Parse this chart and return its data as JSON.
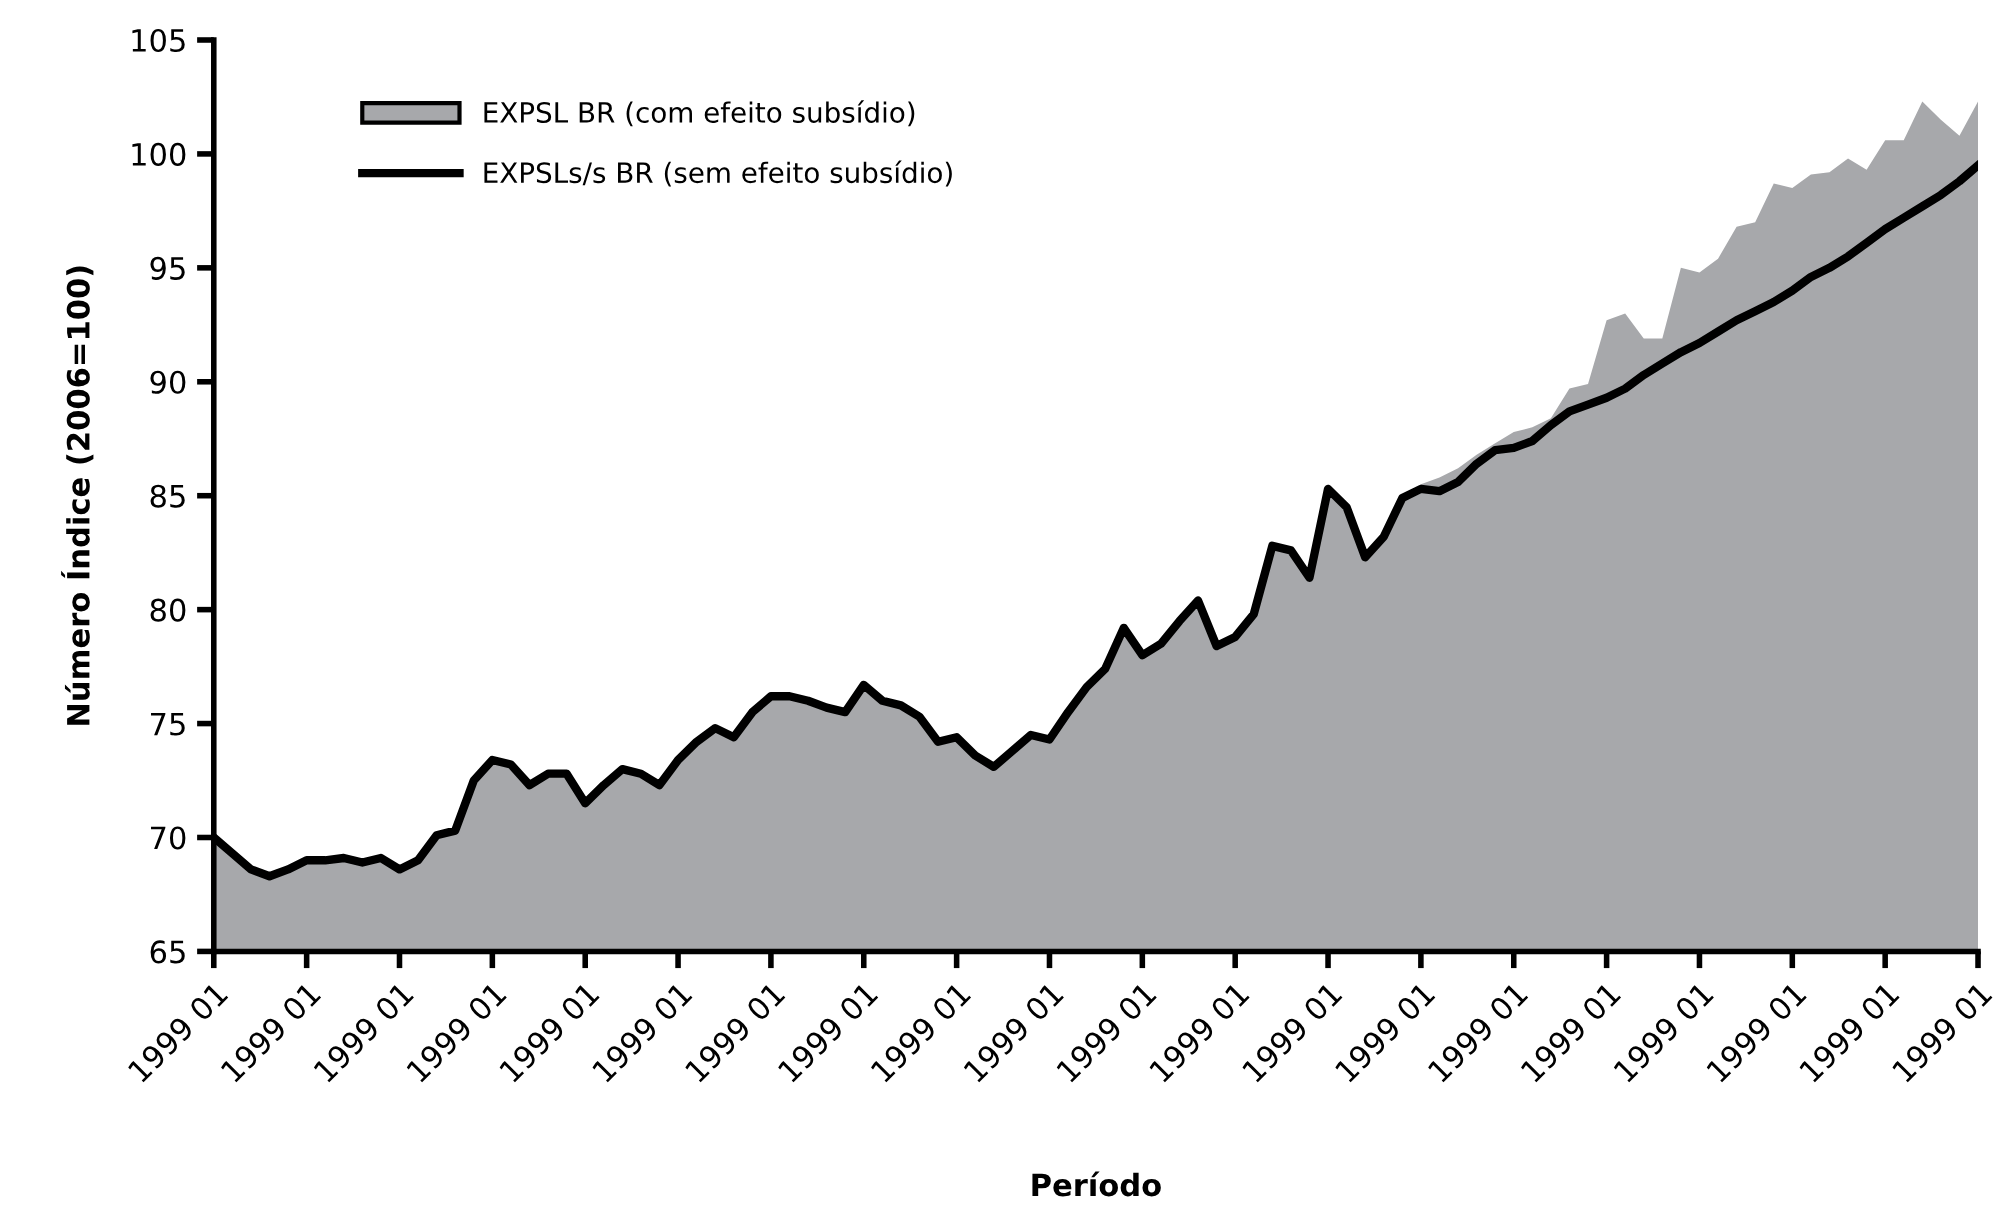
{
  "chart_data": {
    "type": "area",
    "xlabel": "Período",
    "ylabel": "Número Índice (2006=100)",
    "categories": [
      "1999 01",
      null,
      null,
      null,
      null,
      "1999 01",
      null,
      null,
      null,
      null,
      "1999 01",
      null,
      null,
      null,
      null,
      "1999 01",
      null,
      null,
      null,
      null,
      "1999 01",
      null,
      null,
      null,
      null,
      "1999 01",
      null,
      null,
      null,
      null,
      "1999 01",
      null,
      null,
      null,
      null,
      "1999 01",
      null,
      null,
      null,
      null,
      "1999 01",
      null,
      null,
      null,
      null,
      "1999 01",
      null,
      null,
      null,
      null,
      "1999 01",
      null,
      null,
      null,
      null,
      "1999 01",
      null,
      null,
      null,
      null,
      "1999 01",
      null,
      null,
      null,
      null,
      "1999 01",
      null,
      null,
      null,
      null,
      "1999 01",
      null,
      null,
      null,
      null,
      "1999 01",
      null,
      null,
      null,
      null,
      "1999 01",
      null,
      null,
      null,
      null,
      "1999 01",
      null,
      null,
      null,
      null,
      "1999 01",
      null,
      null,
      null,
      null,
      "1999 01"
    ],
    "series": [
      {
        "name": "EXPSL BR (com efeito subsídio)",
        "color": "#a7a8ab",
        "values": [
          70.0,
          69.3,
          68.6,
          68.3,
          68.6,
          69.0,
          69.0,
          69.1,
          68.9,
          69.1,
          68.6,
          69.0,
          70.1,
          70.3,
          72.5,
          73.4,
          73.2,
          72.3,
          72.8,
          72.8,
          71.5,
          72.3,
          73.0,
          72.8,
          72.3,
          73.4,
          74.2,
          74.8,
          74.4,
          75.5,
          76.2,
          76.2,
          76.0,
          75.7,
          75.5,
          76.7,
          76.0,
          75.8,
          75.3,
          74.2,
          74.4,
          73.6,
          73.1,
          73.8,
          74.5,
          74.3,
          75.5,
          76.6,
          77.4,
          79.2,
          78.0,
          78.5,
          79.5,
          80.4,
          78.4,
          78.8,
          79.8,
          82.8,
          82.6,
          81.4,
          85.3,
          84.5,
          82.3,
          83.2,
          84.9,
          85.5,
          85.8,
          86.2,
          86.8,
          87.3,
          87.8,
          88.0,
          88.4,
          89.7,
          89.9,
          92.7,
          93.0,
          91.9,
          91.9,
          95.0,
          94.8,
          95.4,
          96.8,
          97.0,
          98.7,
          98.5,
          99.1,
          99.2,
          99.8,
          99.3,
          100.6,
          100.6,
          102.3,
          101.5,
          100.8,
          102.3
        ]
      },
      {
        "name": "EXPSLs/s BR (sem efeito subsídio)",
        "type": "line",
        "color": "#000000",
        "values": [
          70.0,
          69.3,
          68.6,
          68.3,
          68.6,
          69.0,
          69.0,
          69.1,
          68.9,
          69.1,
          68.6,
          69.0,
          70.1,
          70.3,
          72.5,
          73.4,
          73.2,
          72.3,
          72.8,
          72.8,
          71.5,
          72.3,
          73.0,
          72.8,
          72.3,
          73.4,
          74.2,
          74.8,
          74.4,
          75.5,
          76.2,
          76.2,
          76.0,
          75.7,
          75.5,
          76.7,
          76.0,
          75.8,
          75.3,
          74.2,
          74.4,
          73.6,
          73.1,
          73.8,
          74.5,
          74.3,
          75.5,
          76.6,
          77.4,
          79.2,
          78.0,
          78.5,
          79.5,
          80.4,
          78.4,
          78.8,
          79.8,
          82.8,
          82.6,
          81.4,
          85.3,
          84.5,
          82.3,
          83.2,
          84.9,
          85.3,
          85.2,
          85.6,
          86.4,
          87.0,
          87.1,
          87.4,
          88.1,
          88.7,
          89.0,
          89.3,
          89.7,
          90.3,
          90.8,
          91.3,
          91.7,
          92.2,
          92.7,
          93.1,
          93.5,
          94.0,
          94.6,
          95.0,
          95.5,
          96.1,
          96.7,
          97.2,
          97.7,
          98.2,
          98.8,
          99.5
        ]
      }
    ],
    "ylim": [
      65,
      105
    ],
    "yticks": [
      65,
      70,
      75,
      80,
      85,
      90,
      95,
      100,
      105
    ],
    "grid": false,
    "legend": "top left",
    "marker": "none",
    "line_style": "solid"
  }
}
